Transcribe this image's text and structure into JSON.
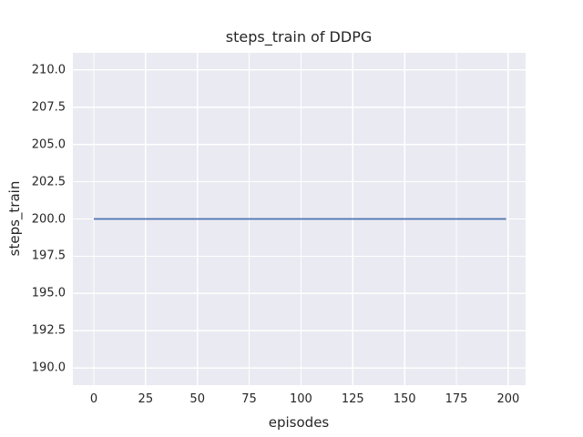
{
  "figure": {
    "background_color": "#ffffff",
    "plot_background_color": "#eaeaf2",
    "grid_color": "#ffffff",
    "text_color": "#262626"
  },
  "chart_data": {
    "type": "line",
    "title": "steps_train of DDPG",
    "xlabel": "episodes",
    "ylabel": "steps_train",
    "xlim": [
      -10.1,
      208.4
    ],
    "ylim": [
      188.85,
      211.15
    ],
    "grid": true,
    "legend": null,
    "x_axis": {
      "label": "episodes",
      "ticks": [
        {
          "value": 0,
          "label": "0"
        },
        {
          "value": 25,
          "label": "25"
        },
        {
          "value": 50,
          "label": "50"
        },
        {
          "value": 75,
          "label": "75"
        },
        {
          "value": 100,
          "label": "100"
        },
        {
          "value": 125,
          "label": "125"
        },
        {
          "value": 150,
          "label": "150"
        },
        {
          "value": 175,
          "label": "175"
        },
        {
          "value": 200,
          "label": "200"
        }
      ]
    },
    "y_axis": {
      "label": "steps_train",
      "ticks": [
        {
          "value": 190.0,
          "label": "190.0"
        },
        {
          "value": 192.5,
          "label": "192.5"
        },
        {
          "value": 195.0,
          "label": "195.0"
        },
        {
          "value": 197.5,
          "label": "197.5"
        },
        {
          "value": 200.0,
          "label": "200.0"
        },
        {
          "value": 202.5,
          "label": "202.5"
        },
        {
          "value": 205.0,
          "label": "205.0"
        },
        {
          "value": 207.5,
          "label": "207.5"
        },
        {
          "value": 210.0,
          "label": "210.0"
        }
      ]
    },
    "series": [
      {
        "name": "steps_train",
        "color": "#4c72b0",
        "line_width": 1.8,
        "x": [
          0,
          199
        ],
        "y": [
          200,
          200
        ]
      }
    ]
  }
}
